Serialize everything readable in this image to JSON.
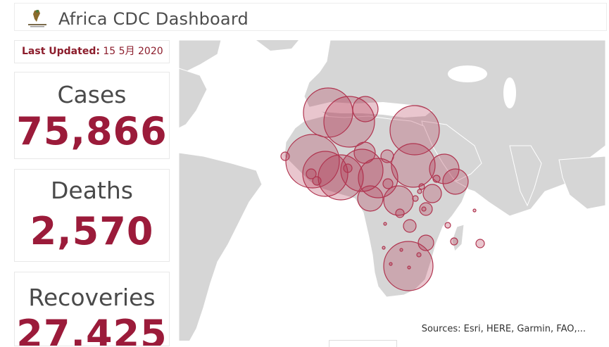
{
  "header": {
    "title": "Africa CDC Dashboard",
    "logo_icon": "africa-cdc-logo-icon"
  },
  "last_updated": {
    "label": "Last Updated:",
    "value": "15 5月 2020"
  },
  "stats": {
    "cases": {
      "title": "Cases",
      "value": "75,866"
    },
    "deaths": {
      "title": "Deaths",
      "value": "2,570"
    },
    "recoveries": {
      "title": "Recoveries",
      "value": "27,425"
    }
  },
  "map": {
    "attribution": "Sources: Esri, HERE, Garmin, FAO,...",
    "land_color": "#d6d6d6",
    "bubble_color": "#b0344f"
  }
}
